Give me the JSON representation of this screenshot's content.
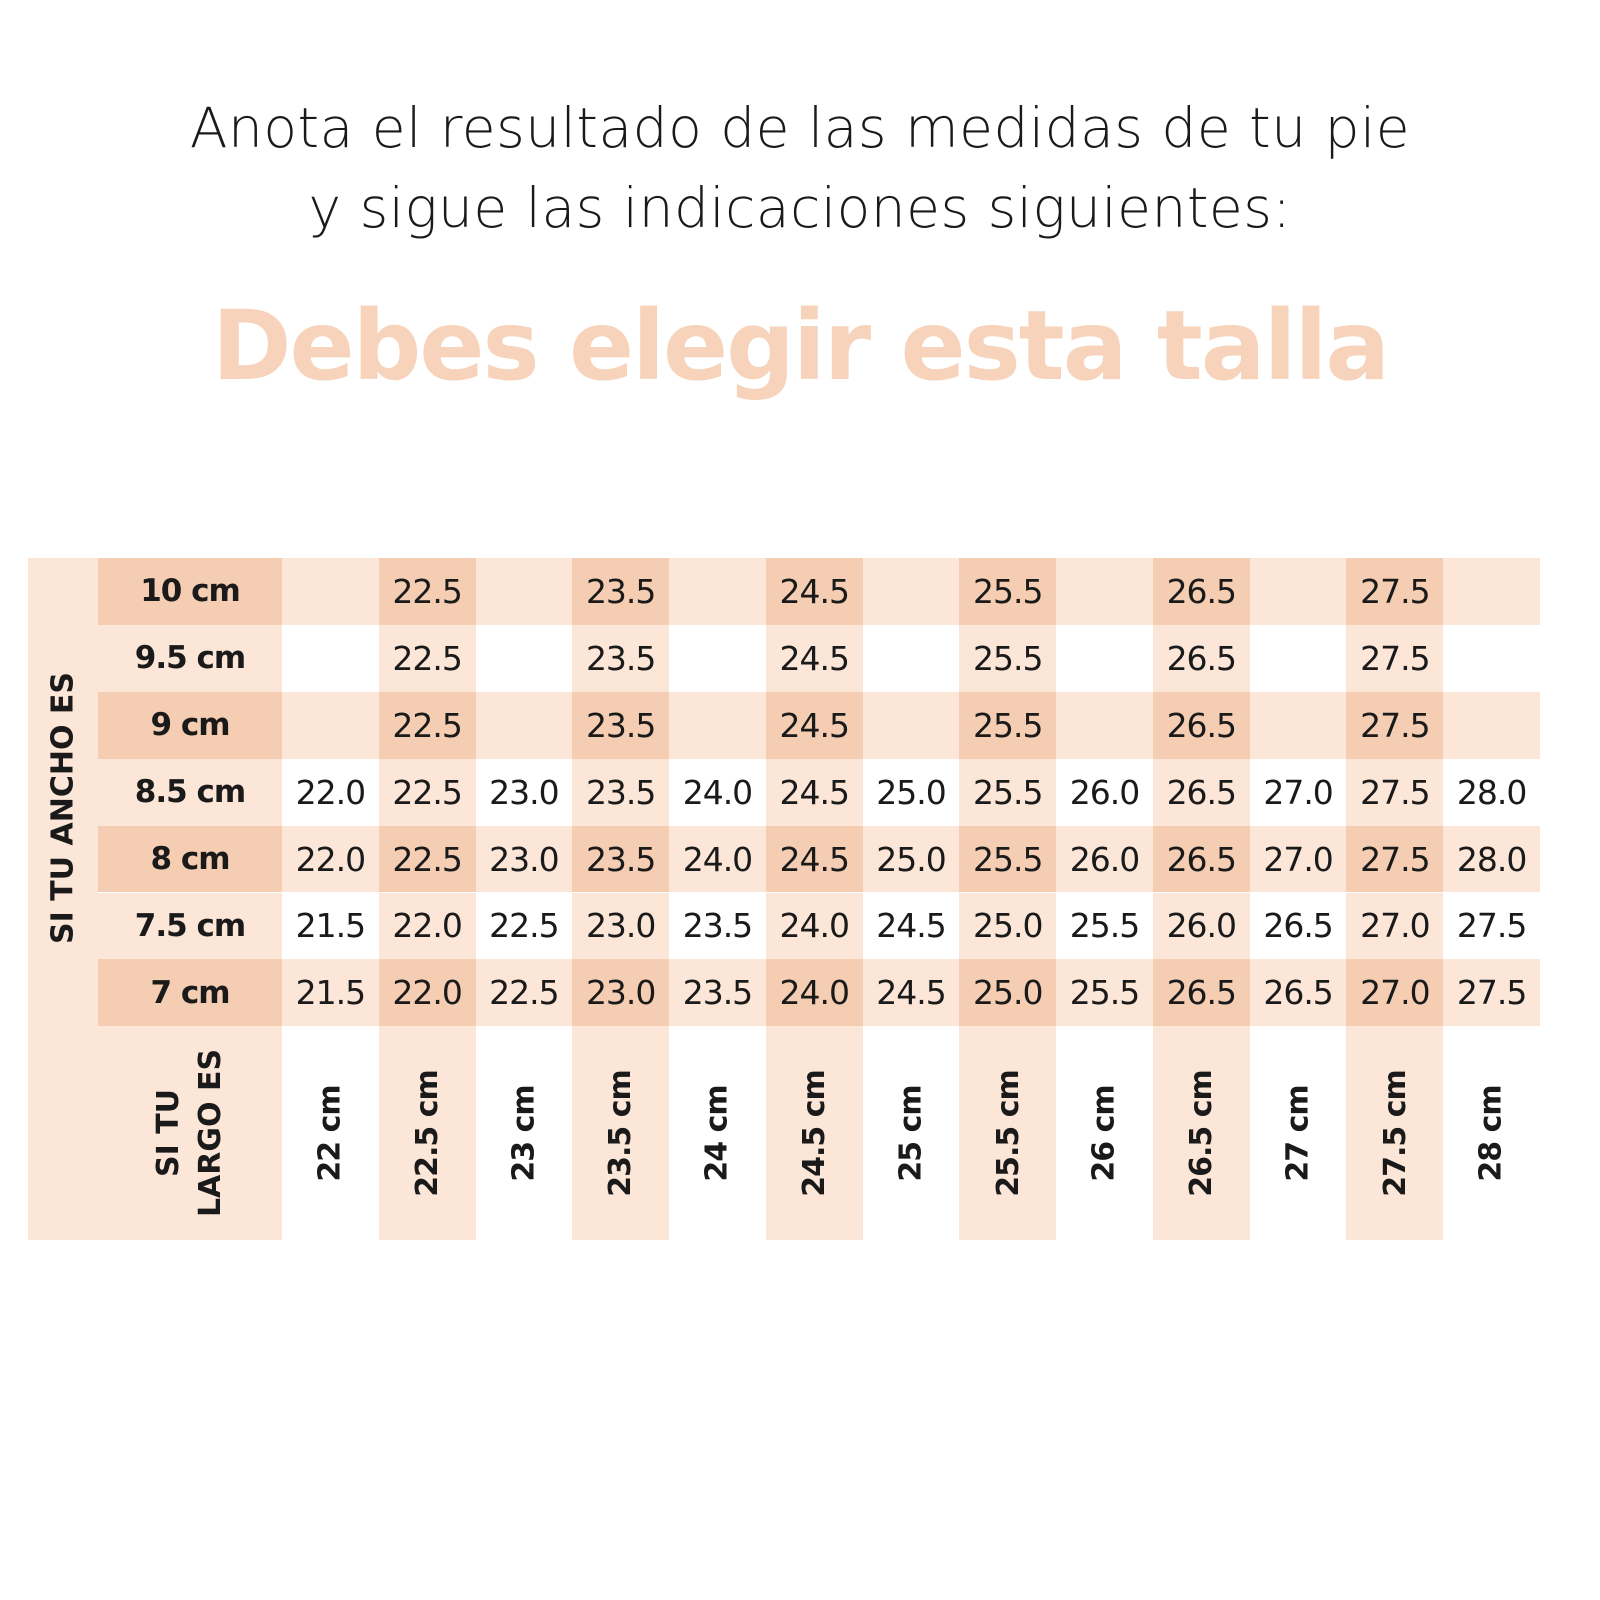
{
  "intro": {
    "line1": "Anota el resultado de las medidas de tu pie",
    "line2": "y sigue las indicaciones siguientes:"
  },
  "headline": "Debes elegir esta talla",
  "colors": {
    "light": "#fbe6d8",
    "dark": "#f5cdb3",
    "headline": "#f6d3ba"
  },
  "table": {
    "width_label": "SI TU ANCHO ES",
    "length_label_line1": "SI TU",
    "length_label_line2": "LARGO ES",
    "lengths": [
      "22 cm",
      "22.5 cm",
      "23 cm",
      "23.5 cm",
      "24 cm",
      "24.5 cm",
      "25 cm",
      "25.5 cm",
      "26 cm",
      "26.5 cm",
      "27 cm",
      "27.5 cm",
      "28 cm"
    ],
    "rows": [
      {
        "width": "10 cm",
        "sizes": [
          "",
          "22.5",
          "",
          "23.5",
          "",
          "24.5",
          "",
          "25.5",
          "",
          "26.5",
          "",
          "27.5",
          ""
        ]
      },
      {
        "width": "9.5 cm",
        "sizes": [
          "",
          "22.5",
          "",
          "23.5",
          "",
          "24.5",
          "",
          "25.5",
          "",
          "26.5",
          "",
          "27.5",
          ""
        ]
      },
      {
        "width": "9 cm",
        "sizes": [
          "",
          "22.5",
          "",
          "23.5",
          "",
          "24.5",
          "",
          "25.5",
          "",
          "26.5",
          "",
          "27.5",
          ""
        ]
      },
      {
        "width": "8.5 cm",
        "sizes": [
          "22.0",
          "22.5",
          "23.0",
          "23.5",
          "24.0",
          "24.5",
          "25.0",
          "25.5",
          "26.0",
          "26.5",
          "27.0",
          "27.5",
          "28.0"
        ]
      },
      {
        "width": "8 cm",
        "sizes": [
          "22.0",
          "22.5",
          "23.0",
          "23.5",
          "24.0",
          "24.5",
          "25.0",
          "25.5",
          "26.0",
          "26.5",
          "27.0",
          "27.5",
          "28.0"
        ]
      },
      {
        "width": "7.5 cm",
        "sizes": [
          "21.5",
          "22.0",
          "22.5",
          "23.0",
          "23.5",
          "24.0",
          "24.5",
          "25.0",
          "25.5",
          "26.0",
          "26.5",
          "27.0",
          "27.5"
        ]
      },
      {
        "width": "7 cm",
        "sizes": [
          "21.5",
          "22.0",
          "22.5",
          "23.0",
          "23.5",
          "24.0",
          "24.5",
          "25.0",
          "25.5",
          "26.5",
          "26.5",
          "27.0",
          "27.5"
        ]
      }
    ]
  }
}
